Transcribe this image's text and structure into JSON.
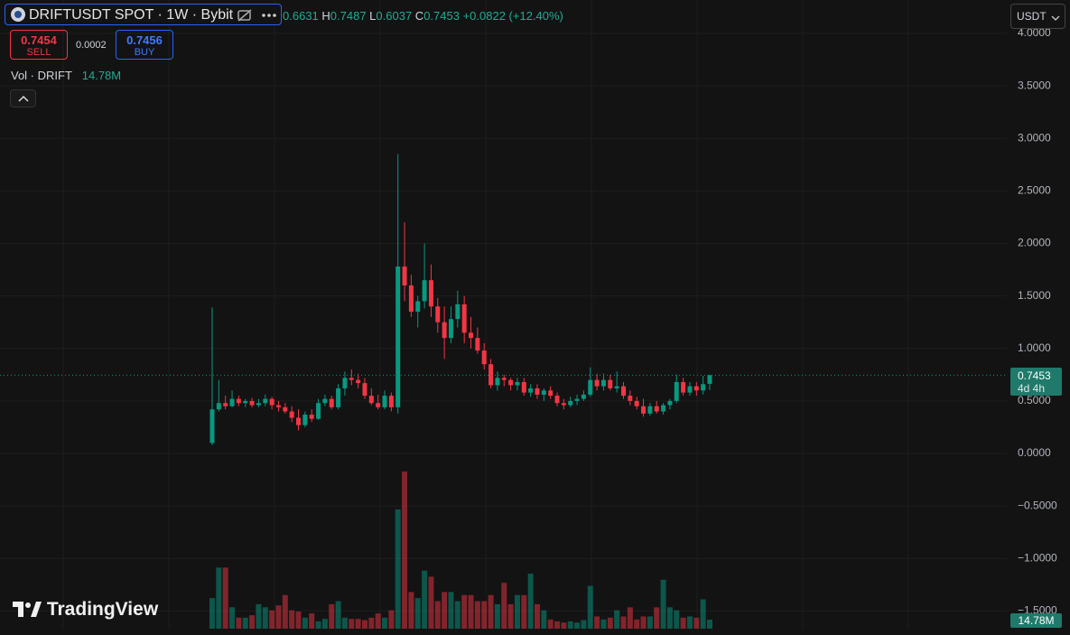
{
  "chart_data": {
    "type": "candlestick",
    "title": "DRIFTUSDT SPOT · 1W · Bybit",
    "legend": {
      "open": 0.6631,
      "high_label": "H",
      "high": 0.7487,
      "low_label": "L",
      "low": 0.6037,
      "close_label": "C",
      "close": 0.7453,
      "change": "+0.0822 (+12.40%)"
    },
    "sell": {
      "price": 0.7454,
      "label": "SELL"
    },
    "spread": 0.0002,
    "buy": {
      "price": 0.7456,
      "label": "BUY"
    },
    "volume_legend": {
      "name": "Vol · DRIFT",
      "value": "14.78M"
    },
    "currency": "USDT",
    "countdown": "4d 4h",
    "brand": "TradingView",
    "up_color": "#089981",
    "down_color": "#f23645",
    "open": [
      0.1,
      0.42,
      0.48,
      0.45,
      0.52,
      0.48,
      0.5,
      0.46,
      0.48,
      0.52,
      0.46,
      0.44,
      0.4,
      0.34,
      0.27,
      0.37,
      0.33,
      0.48,
      0.52,
      0.44,
      0.62,
      0.72,
      0.7,
      0.67,
      0.55,
      0.48,
      0.44,
      0.55,
      0.44,
      1.78,
      1.6,
      1.35,
      1.45,
      1.65,
      1.4,
      1.25,
      1.1,
      1.28,
      1.42,
      1.15,
      1.1,
      0.98,
      0.85,
      0.65,
      0.72,
      0.7,
      0.65,
      0.68,
      0.58,
      0.62,
      0.56,
      0.6,
      0.55,
      0.48,
      0.46,
      0.5,
      0.52,
      0.56,
      0.7,
      0.64,
      0.7,
      0.62,
      0.64,
      0.55,
      0.5,
      0.45,
      0.38,
      0.45,
      0.4,
      0.46,
      0.5,
      0.68,
      0.58,
      0.64,
      0.6,
      0.6631
    ],
    "high": [
      1.39,
      0.7,
      0.55,
      0.6,
      0.55,
      0.52,
      0.53,
      0.52,
      0.56,
      0.54,
      0.5,
      0.48,
      0.45,
      0.42,
      0.4,
      0.42,
      0.52,
      0.56,
      0.55,
      0.66,
      0.78,
      0.8,
      0.76,
      0.72,
      0.62,
      0.56,
      0.6,
      0.58,
      2.85,
      2.2,
      1.7,
      1.5,
      2.0,
      1.8,
      1.48,
      1.4,
      1.4,
      1.55,
      1.5,
      1.3,
      1.2,
      1.05,
      0.9,
      0.78,
      0.75,
      0.72,
      0.72,
      0.72,
      0.66,
      0.66,
      0.62,
      0.64,
      0.58,
      0.52,
      0.54,
      0.56,
      0.6,
      0.82,
      0.76,
      0.76,
      0.75,
      0.78,
      0.68,
      0.6,
      0.54,
      0.52,
      0.48,
      0.5,
      0.48,
      0.52,
      0.75,
      0.72,
      0.68,
      0.68,
      0.74,
      0.7487
    ],
    "low": [
      0.08,
      0.4,
      0.42,
      0.44,
      0.45,
      0.44,
      0.44,
      0.44,
      0.45,
      0.42,
      0.4,
      0.38,
      0.3,
      0.22,
      0.25,
      0.3,
      0.32,
      0.45,
      0.42,
      0.42,
      0.55,
      0.65,
      0.62,
      0.52,
      0.46,
      0.42,
      0.42,
      0.4,
      0.38,
      1.45,
      1.3,
      1.2,
      1.38,
      1.3,
      1.15,
      0.9,
      1.05,
      1.2,
      1.05,
      1.0,
      0.95,
      0.8,
      0.62,
      0.6,
      0.64,
      0.6,
      0.6,
      0.55,
      0.54,
      0.52,
      0.5,
      0.52,
      0.45,
      0.42,
      0.44,
      0.46,
      0.5,
      0.54,
      0.6,
      0.6,
      0.6,
      0.58,
      0.52,
      0.46,
      0.42,
      0.35,
      0.36,
      0.38,
      0.37,
      0.42,
      0.48,
      0.55,
      0.55,
      0.55,
      0.56,
      0.6037
    ],
    "close": [
      0.42,
      0.48,
      0.45,
      0.52,
      0.48,
      0.5,
      0.46,
      0.48,
      0.52,
      0.46,
      0.44,
      0.4,
      0.34,
      0.27,
      0.37,
      0.33,
      0.48,
      0.52,
      0.44,
      0.62,
      0.72,
      0.7,
      0.67,
      0.55,
      0.48,
      0.44,
      0.55,
      0.44,
      1.78,
      1.6,
      1.35,
      1.45,
      1.65,
      1.4,
      1.25,
      1.1,
      1.28,
      1.42,
      1.15,
      1.1,
      0.98,
      0.85,
      0.65,
      0.72,
      0.7,
      0.65,
      0.68,
      0.58,
      0.62,
      0.56,
      0.6,
      0.55,
      0.48,
      0.46,
      0.5,
      0.52,
      0.56,
      0.7,
      0.64,
      0.7,
      0.62,
      0.64,
      0.55,
      0.5,
      0.45,
      0.38,
      0.45,
      0.4,
      0.46,
      0.5,
      0.68,
      0.58,
      0.64,
      0.6,
      0.66,
      0.7453
    ],
    "volume": [
      50,
      100,
      100,
      35,
      18,
      18,
      22,
      40,
      35,
      30,
      38,
      55,
      30,
      28,
      18,
      25,
      12,
      16,
      40,
      45,
      18,
      16,
      16,
      14,
      18,
      25,
      18,
      30,
      195,
      257,
      60,
      50,
      95,
      85,
      45,
      60,
      60,
      45,
      55,
      55,
      45,
      45,
      55,
      40,
      75,
      40,
      55,
      55,
      90,
      40,
      30,
      15,
      12,
      10,
      12,
      10,
      14,
      70,
      20,
      15,
      18,
      30,
      20,
      35,
      15,
      20,
      20,
      35,
      80,
      35,
      30,
      18,
      20,
      18,
      48,
      14.78
    ],
    "ylim": [
      -1.677,
      4.318
    ],
    "yticks": [
      {
        "value": 4.0,
        "label": "4.0000"
      },
      {
        "value": 3.5,
        "label": "3.5000"
      },
      {
        "value": 3.0,
        "label": "3.0000"
      },
      {
        "value": 2.5,
        "label": "2.5000"
      },
      {
        "value": 2.0,
        "label": "2.0000"
      },
      {
        "value": 1.5,
        "label": "1.5000"
      },
      {
        "value": 1.0,
        "label": "1.0000"
      },
      {
        "value": 0.5,
        "label": "0.5000"
      },
      {
        "value": 0.0,
        "label": "0.0000"
      },
      {
        "value": -0.5,
        "label": "−0.5000"
      },
      {
        "value": -1.0,
        "label": "−1.0000"
      },
      {
        "value": -1.5,
        "label": "−1.5000"
      }
    ],
    "grid": true
  }
}
